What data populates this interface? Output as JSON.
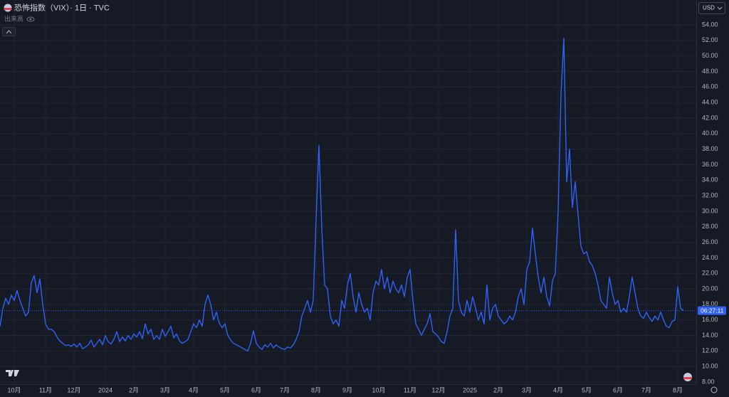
{
  "chart_data": {
    "type": "line",
    "title": "恐怖指数（VIX）· 1日 · TVC",
    "volume_label": "出来高",
    "currency": "USD",
    "countdown": "06:27:11",
    "color": "#2f62f5",
    "grid": true,
    "categories": [
      null,
      null,
      null,
      null,
      null,
      "10月",
      null,
      null,
      null,
      null,
      null,
      null,
      null,
      null,
      null,
      null,
      "11月",
      null,
      null,
      null,
      null,
      null,
      null,
      null,
      null,
      null,
      "12月",
      null,
      null,
      null,
      null,
      null,
      null,
      null,
      null,
      null,
      null,
      "2024",
      null,
      null,
      null,
      null,
      null,
      null,
      null,
      null,
      null,
      "2月",
      null,
      null,
      null,
      null,
      null,
      null,
      null,
      null,
      null,
      null,
      "3月",
      null,
      null,
      null,
      null,
      null,
      null,
      null,
      null,
      null,
      "4月",
      null,
      null,
      null,
      null,
      null,
      null,
      null,
      null,
      null,
      null,
      "5月",
      null,
      null,
      null,
      null,
      null,
      null,
      null,
      null,
      null,
      null,
      "6月",
      null,
      null,
      null,
      null,
      null,
      null,
      null,
      null,
      null,
      "7月",
      null,
      null,
      null,
      null,
      null,
      null,
      null,
      null,
      null,
      null,
      "8月",
      null,
      null,
      null,
      null,
      null,
      null,
      null,
      null,
      null,
      null,
      "9月",
      null,
      null,
      null,
      null,
      null,
      null,
      null,
      null,
      null,
      null,
      "10月",
      null,
      null,
      null,
      null,
      null,
      null,
      null,
      null,
      null,
      null,
      "11月",
      null,
      null,
      null,
      null,
      null,
      null,
      null,
      null,
      null,
      "12月",
      null,
      null,
      null,
      null,
      null,
      null,
      null,
      null,
      null,
      null,
      "2025",
      null,
      null,
      null,
      null,
      null,
      null,
      null,
      null,
      null,
      "2月",
      null,
      null,
      null,
      null,
      null,
      null,
      null,
      null,
      null,
      "3月",
      null,
      null,
      null,
      null,
      null,
      null,
      null,
      null,
      null,
      null,
      "4月",
      null,
      null,
      null,
      null,
      null,
      null,
      null,
      null,
      null,
      "5月",
      null,
      null,
      null,
      null,
      null,
      null,
      null,
      null,
      null,
      null,
      "6月",
      null,
      null,
      null,
      null,
      null,
      null,
      null,
      null,
      null,
      "7月",
      null,
      null,
      null,
      null,
      null,
      null,
      null,
      null,
      null,
      null,
      "8月",
      null,
      null
    ],
    "values": [
      15.2,
      17.5,
      18.8,
      18.0,
      19.2,
      18.5,
      19.8,
      18.5,
      17.5,
      16.5,
      17.0,
      20.8,
      21.7,
      19.5,
      21.3,
      18.0,
      15.5,
      14.8,
      14.8,
      14.5,
      13.8,
      13.3,
      13.0,
      12.7,
      12.8,
      12.6,
      12.9,
      12.5,
      13.0,
      12.3,
      12.5,
      12.8,
      13.4,
      12.5,
      13.0,
      13.5,
      12.8,
      14.0,
      13.2,
      12.9,
      13.5,
      14.5,
      13.2,
      13.8,
      13.3,
      14.0,
      13.5,
      14.2,
      13.8,
      14.5,
      13.6,
      15.5,
      14.2,
      14.8,
      13.5,
      14.0,
      13.5,
      14.8,
      13.9,
      14.5,
      15.2,
      13.7,
      14.2,
      13.3,
      13.0,
      13.2,
      13.5,
      14.5,
      15.5,
      15.0,
      16.0,
      15.2,
      18.0,
      19.2,
      18.0,
      16.0,
      17.0,
      15.6,
      15.0,
      15.5,
      14.0,
      13.4,
      13.0,
      12.8,
      12.6,
      12.4,
      12.2,
      12.0,
      13.0,
      14.6,
      13.0,
      12.5,
      12.2,
      12.8,
      12.5,
      13.0,
      12.4,
      12.8,
      12.5,
      12.3,
      12.2,
      12.5,
      12.4,
      12.8,
      13.5,
      14.5,
      16.5,
      17.5,
      18.5,
      17.0,
      18.5,
      29.0,
      38.5,
      27.8,
      20.5,
      20.0,
      16.5,
      15.5,
      16.0,
      15.2,
      18.5,
      17.5,
      20.5,
      22.0,
      19.0,
      17.0,
      19.5,
      18.0,
      17.0,
      17.5,
      16.0,
      19.5,
      21.0,
      20.5,
      22.5,
      20.0,
      21.5,
      19.5,
      21.0,
      20.0,
      19.5,
      20.5,
      19.0,
      21.5,
      22.5,
      18.5,
      15.5,
      14.8,
      14.0,
      14.8,
      15.5,
      16.8,
      14.5,
      14.2,
      13.8,
      13.2,
      13.0,
      14.5,
      16.5,
      17.5,
      27.6,
      18.5,
      17.0,
      16.5,
      18.5,
      17.0,
      19.0,
      17.5,
      16.0,
      17.0,
      15.5,
      20.5,
      16.0,
      17.5,
      18.0,
      16.5,
      16.0,
      15.5,
      15.8,
      16.5,
      16.0,
      17.0,
      19.0,
      20.0,
      18.0,
      22.5,
      23.5,
      27.8,
      24.5,
      21.5,
      19.5,
      21.5,
      19.0,
      17.8,
      21.0,
      22.0,
      30.0,
      45.0,
      52.3,
      33.8,
      38.0,
      30.5,
      33.8,
      29.5,
      25.5,
      24.5,
      24.8,
      23.5,
      23.0,
      22.0,
      20.5,
      18.5,
      18.0,
      17.5,
      21.5,
      19.5,
      18.0,
      18.5,
      17.0,
      17.5,
      17.0,
      19.0,
      21.5,
      19.5,
      17.5,
      16.5,
      16.2,
      17.0,
      16.3,
      15.8,
      16.5,
      16.0,
      17.0,
      16.0,
      15.2,
      15.0,
      15.8,
      16.0,
      20.3,
      17.5,
      17.2
    ],
    "ylim": [
      8,
      54.5
    ],
    "yticks": [
      {
        "value": 8,
        "label": "8.00"
      },
      {
        "value": 10,
        "label": "10.00"
      },
      {
        "value": 12,
        "label": "12.00"
      },
      {
        "value": 14,
        "label": "14.00"
      },
      {
        "value": 16,
        "label": "16.00"
      },
      {
        "value": 18,
        "label": "18.00"
      },
      {
        "value": 20,
        "label": "20.00"
      },
      {
        "value": 22,
        "label": "22.00"
      },
      {
        "value": 24,
        "label": "24.00"
      },
      {
        "value": 26,
        "label": "26.00"
      },
      {
        "value": 28,
        "label": "28.00"
      },
      {
        "value": 30,
        "label": "30.00"
      },
      {
        "value": 32,
        "label": "32.00"
      },
      {
        "value": 34,
        "label": "34.00"
      },
      {
        "value": 36,
        "label": "36.00"
      },
      {
        "value": 38,
        "label": "38.00"
      },
      {
        "value": 40,
        "label": "40.00"
      },
      {
        "value": 42,
        "label": "42.00"
      },
      {
        "value": 44,
        "label": "44.00"
      },
      {
        "value": 46,
        "label": "46.00"
      },
      {
        "value": 48,
        "label": "48.00"
      },
      {
        "value": 50,
        "label": "50.00"
      },
      {
        "value": 52,
        "label": "52.00"
      },
      {
        "value": 54,
        "label": "54.00"
      }
    ]
  }
}
